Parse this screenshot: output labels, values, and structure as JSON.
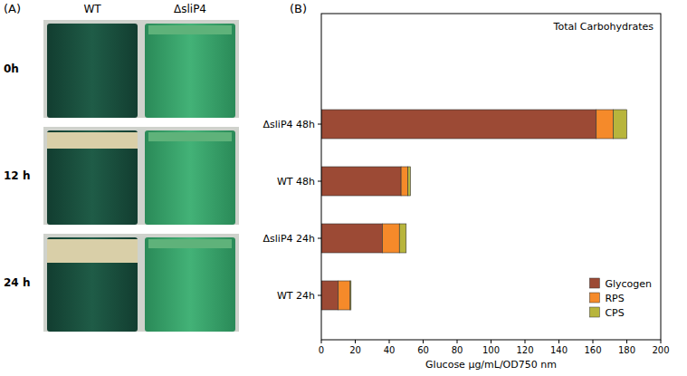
{
  "panel_a": {
    "label": "(A)",
    "columns": [
      "WT",
      "ΔsliP4"
    ],
    "rows": [
      "0h",
      "12 h",
      "24 h"
    ]
  },
  "chart_data": {
    "type": "bar",
    "panel_label": "(B)",
    "title": "Total Carbohydrates",
    "orientation": "horizontal",
    "stacked": true,
    "legend": "lower right",
    "x_label": "Glucose μg/mL/OD750 nm",
    "categories": [
      "ΔsliP4 48h",
      "WT 48h",
      "ΔsliP4 24h",
      "WT 24h"
    ],
    "series": [
      {
        "name": "Glycogen",
        "color": "#9c4a35",
        "values": [
          162,
          47,
          36,
          10
        ]
      },
      {
        "name": "RPS",
        "color": "#f58a2a",
        "values": [
          10,
          4,
          10,
          7
        ]
      },
      {
        "name": "CPS",
        "color": "#b8b53c",
        "values": [
          8,
          1.5,
          4,
          0.5
        ]
      }
    ],
    "xlim": [
      0,
      200
    ],
    "xticks": [
      0,
      20,
      40,
      60,
      80,
      100,
      120,
      140,
      160,
      180,
      200
    ]
  }
}
